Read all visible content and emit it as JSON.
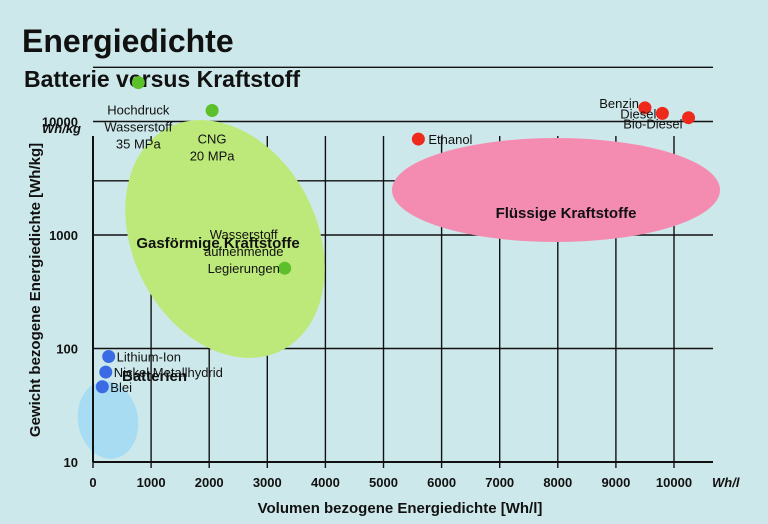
{
  "chart_data": {
    "type": "scatter",
    "title": "Energiedichte",
    "subtitle": "Batterie versus Kraftstoff",
    "xlabel": "Volumen bezogene Energiedichte [Wh/l]",
    "ylabel": "Gewicht bezogene Energiedichte [Wh/kg]",
    "x_unit": "Wh/l",
    "y_unit": "Wh/kg",
    "xlim": [
      0,
      11000
    ],
    "ylim": [
      10,
      40000
    ],
    "y_scale": "log",
    "grid": true,
    "x_ticks": [
      "0",
      "1000",
      "2000",
      "3000",
      "4000",
      "5000",
      "6000",
      "7000",
      "8000",
      "9000",
      "10000"
    ],
    "y_ticks": [
      {
        "value": 10,
        "label": "10"
      },
      {
        "value": 100,
        "label": "100"
      },
      {
        "value": 1000,
        "label": "1000"
      },
      {
        "value": 10000,
        "label": "10000"
      }
    ],
    "groups": [
      {
        "name": "Batterien",
        "color": "#a8dcf2",
        "marker_color": "#3a6ae4",
        "points": [
          {
            "label": "Lithium-Ion",
            "x": 270,
            "y": 85
          },
          {
            "label": "Nickel Metallhydrid",
            "x": 220,
            "y": 62
          },
          {
            "label": "Blei",
            "x": 160,
            "y": 46
          }
        ]
      },
      {
        "name": "Gasförmige Kraftstoffe",
        "color": "#bde97a",
        "marker_color": "#5cc02a",
        "points": [
          {
            "label_lines": [
              "Hochdruck",
              "Wasserstoff",
              "35 MPa"
            ],
            "x": 780,
            "y": 22000
          },
          {
            "label_lines": [
              "CNG",
              "20 MPa"
            ],
            "x": 2050,
            "y": 12500
          },
          {
            "label_lines": [
              "Wasserstoff",
              "aufnehmende",
              "Legierungen"
            ],
            "x": 3300,
            "y": 510
          }
        ]
      },
      {
        "name": "Flüssige Kraftstoffe",
        "color": "#f48cb2",
        "marker_color": "#ee2a1c",
        "points": [
          {
            "label": "Ethanol",
            "x": 5600,
            "y": 7000
          },
          {
            "label": "Benzin",
            "x": 9500,
            "y": 13200
          },
          {
            "label": "Diesel",
            "x": 9800,
            "y": 11800
          },
          {
            "label": "Bio-Diesel",
            "x": 10250,
            "y": 10800
          }
        ]
      }
    ]
  }
}
